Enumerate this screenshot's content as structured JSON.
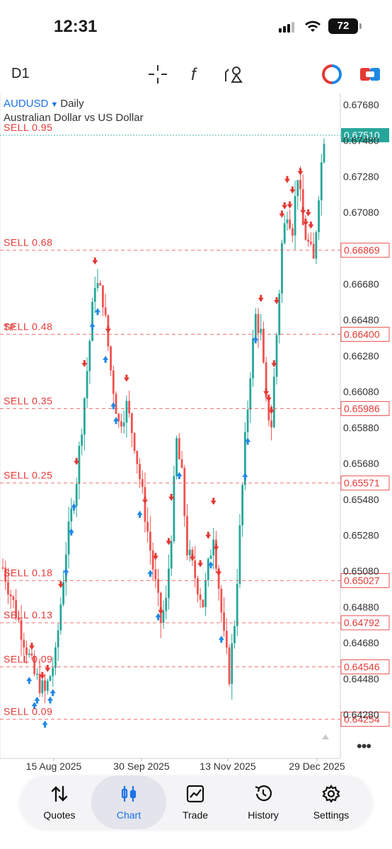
{
  "status_bar": {
    "time": "12:31",
    "battery": "72",
    "icons": [
      "signal-icon",
      "wifi-icon",
      "battery-icon"
    ]
  },
  "toolbar": {
    "timeframe": "D1",
    "icons": [
      "crosshair-icon",
      "indicators-icon",
      "objects-icon",
      "trade-toggle-icon",
      "one-click-trading-icon"
    ]
  },
  "chart": {
    "symbol": "AUDUSD",
    "period": "Daily",
    "description": "Australian Dollar vs US Dollar",
    "current_price": "0.67510",
    "price_axis_labels": [
      "0.67680",
      "0.67480",
      "0.67280",
      "0.67080",
      "0.66680",
      "0.66480",
      "0.66280",
      "0.66080",
      "0.65880",
      "0.65680",
      "0.65480",
      "0.65280",
      "0.65080",
      "0.64880",
      "0.64680",
      "0.64480",
      "0.64280"
    ],
    "order_levels": [
      {
        "label": "SELL 0.95",
        "price": "0.67510"
      },
      {
        "label": "SELL 0.68",
        "price": "0.66869"
      },
      {
        "label": "SELL 0.48",
        "price": "0.66400",
        "prefix": "TP"
      },
      {
        "label": "SELL 0.35",
        "price": "0.65986"
      },
      {
        "label": "SELL 0.25",
        "price": "0.65571"
      },
      {
        "label": "SELL 0.18",
        "price": "0.65027"
      },
      {
        "label": "SELL 0.13",
        "price": "0.64792"
      },
      {
        "label": "SELL 0.09",
        "price": "0.64546"
      },
      {
        "label": "SELL 0.09",
        "price": "0.64254"
      }
    ],
    "time_axis_labels": [
      "15 Aug 2025",
      "30 Sep 2025",
      "13 Nov 2025",
      "29 Dec 2025"
    ],
    "colors": {
      "bull": "#26a69a",
      "bear": "#ef5350",
      "buy_marker": "#1e88e5",
      "sell_marker": "#e53935",
      "symbol": "#1a73e8"
    },
    "more_icon": "more-dots-icon"
  },
  "nav": {
    "items": [
      {
        "label": "Quotes",
        "icon": "quotes-icon"
      },
      {
        "label": "Chart",
        "icon": "chart-icon"
      },
      {
        "label": "Trade",
        "icon": "trade-icon"
      },
      {
        "label": "History",
        "icon": "history-icon"
      },
      {
        "label": "Settings",
        "icon": "settings-icon"
      }
    ],
    "active": "Chart"
  }
}
